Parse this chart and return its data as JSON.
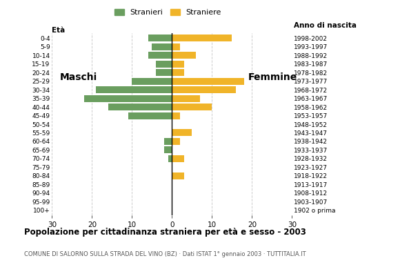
{
  "age_groups": [
    "100+",
    "95-99",
    "90-94",
    "85-89",
    "80-84",
    "75-79",
    "70-74",
    "65-69",
    "60-64",
    "55-59",
    "50-54",
    "45-49",
    "40-44",
    "35-39",
    "30-34",
    "25-29",
    "20-24",
    "15-19",
    "10-14",
    "5-9",
    "0-4"
  ],
  "birth_years": [
    "1902 o prima",
    "1903-1907",
    "1908-1912",
    "1913-1917",
    "1918-1922",
    "1923-1927",
    "1928-1932",
    "1933-1937",
    "1938-1942",
    "1943-1947",
    "1948-1952",
    "1953-1957",
    "1958-1962",
    "1963-1967",
    "1968-1972",
    "1973-1977",
    "1978-1982",
    "1983-1987",
    "1988-1992",
    "1993-1997",
    "1998-2002"
  ],
  "males": [
    0,
    0,
    0,
    0,
    0,
    0,
    1,
    2,
    2,
    0,
    0,
    11,
    16,
    22,
    19,
    10,
    4,
    4,
    6,
    5,
    6
  ],
  "females": [
    0,
    0,
    0,
    0,
    3,
    0,
    3,
    0,
    2,
    5,
    0,
    2,
    10,
    7,
    16,
    18,
    3,
    3,
    6,
    2,
    15
  ],
  "male_color": "#6a9e5f",
  "female_color": "#f0b429",
  "title": "Popolazione per cittadinanza straniera per età e sesso - 2003",
  "subtitle": "COMUNE DI SALORNO SULLA STRADA DEL VINO (BZ) · Dati ISTAT 1° gennaio 2003 · TUTTITALIA.IT",
  "xlabel_left": "Età",
  "xlabel_right": "Anno di nascita",
  "label_maschi": "Maschi",
  "label_femmine": "Femmine",
  "legend_stranieri": "Stranieri",
  "legend_straniere": "Straniere",
  "xlim": 30,
  "background_color": "#ffffff",
  "grid_color": "#cccccc",
  "bar_height": 0.8
}
